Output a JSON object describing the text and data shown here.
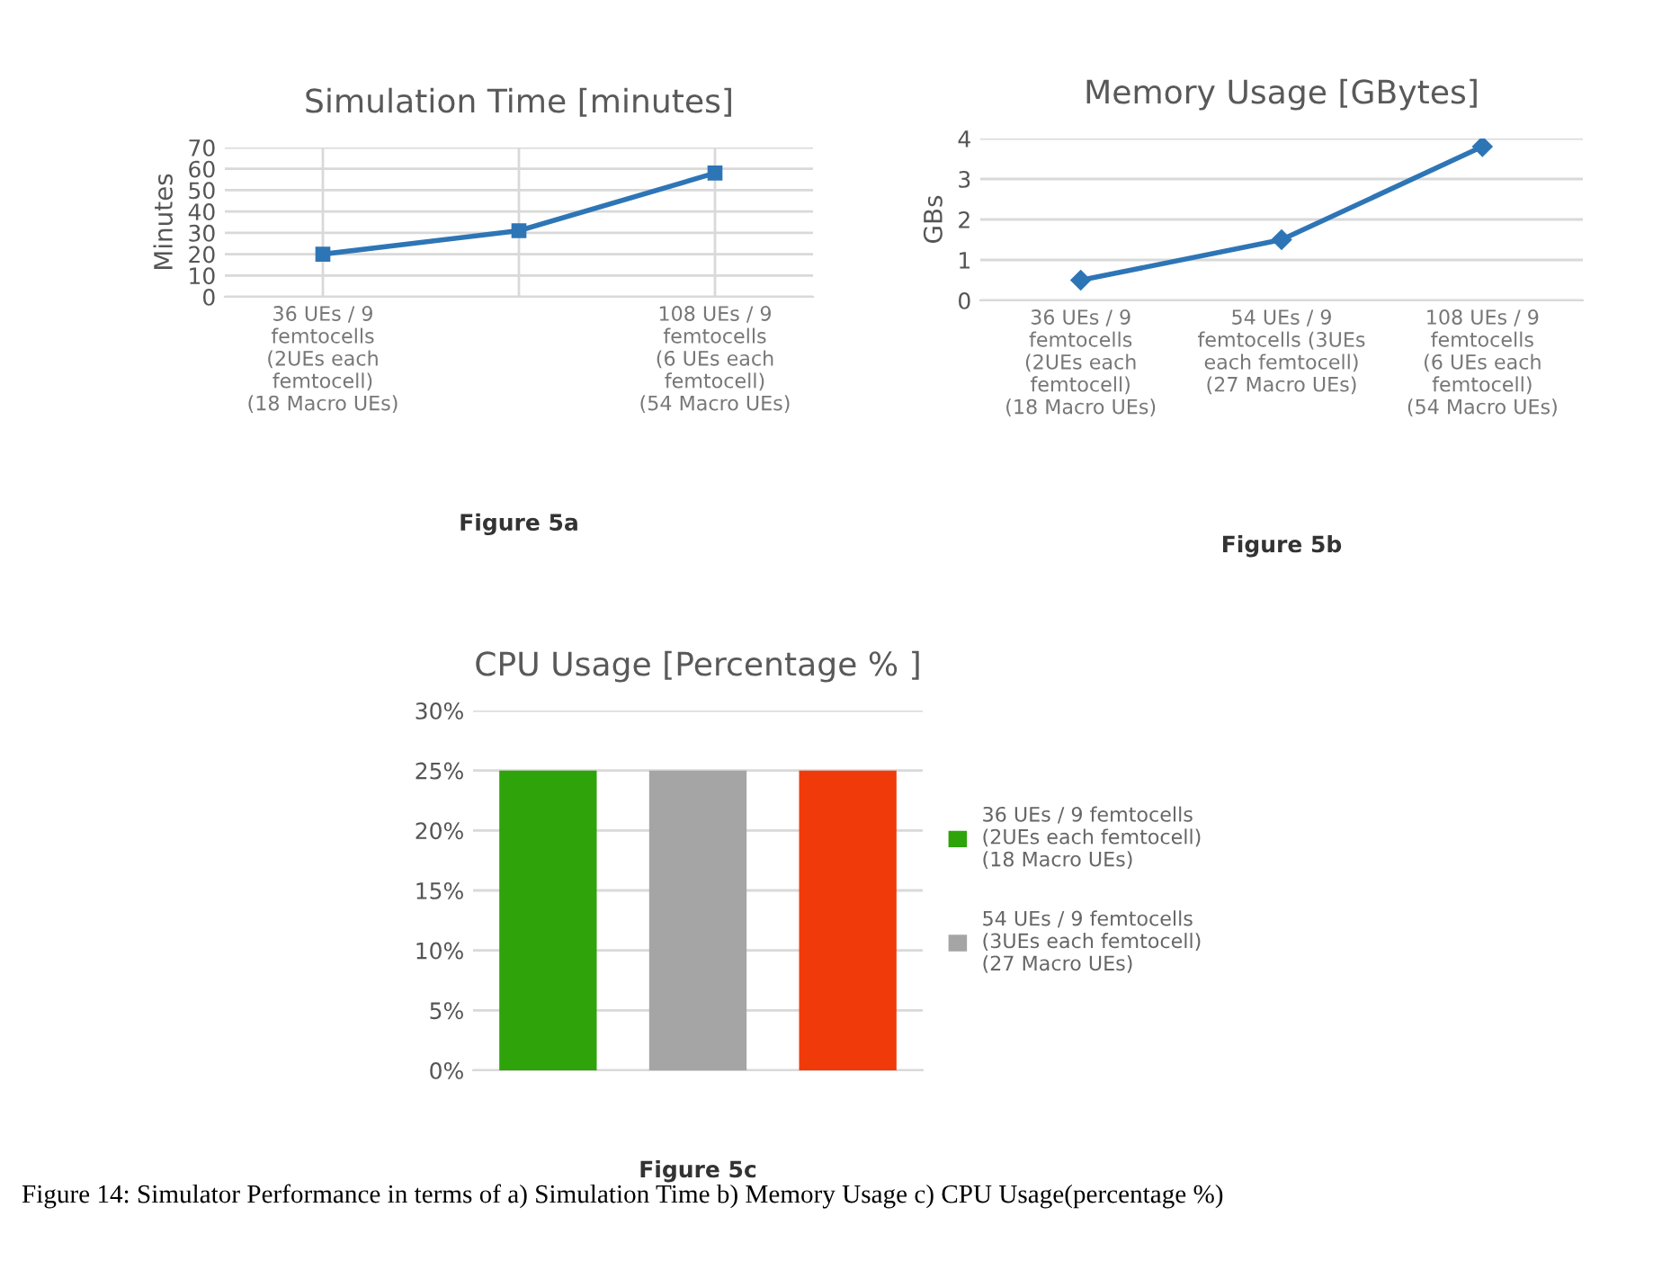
{
  "chart_data": [
    {
      "type": "line",
      "title": "Simulation Time [minutes]",
      "ylabel": "Minutes",
      "categories": [
        "36 UEs / 9\nfemtocells\n(2UEs each\nfemtocell)\n(18 Macro UEs)",
        null,
        "108 UEs / 9\nfemtocells\n(6 UEs each\nfemtocell)\n(54 Macro UEs)"
      ],
      "series": [
        {
          "color": "#2e75b6",
          "values": [
            20,
            31,
            58
          ]
        }
      ],
      "ylim": [
        0,
        70
      ],
      "yticks": [
        0,
        10,
        20,
        30,
        40,
        50,
        60,
        70
      ],
      "grid": true,
      "marker": "square",
      "line_style": "solid",
      "legend": false,
      "annotations": [
        "Figure 5a"
      ]
    },
    {
      "type": "line",
      "title": "Memory Usage [GBytes]",
      "ylabel": "GBs",
      "categories": [
        "36 UEs / 9\nfemtocells\n(2UEs each\nfemtocell)\n(18 Macro UEs)",
        "54 UEs / 9\nfemtocells (3UEs\neach femtocell)\n(27 Macro UEs)",
        "108 UEs / 9\nfemtocells\n(6 UEs each\nfemtocell)\n(54 Macro UEs)"
      ],
      "series": [
        {
          "color": "#2e75b6",
          "values": [
            0.5,
            1.5,
            3.8
          ]
        }
      ],
      "ylim": [
        0,
        4
      ],
      "yticks": [
        0,
        1,
        2,
        3,
        4
      ],
      "grid": "y",
      "marker": "diamond",
      "line_style": "solid",
      "legend": false,
      "annotations": [
        "Figure 5b"
      ]
    },
    {
      "type": "bar",
      "title": "CPU Usage [Percentage % ]",
      "categories": [
        null,
        null,
        null
      ],
      "series": [
        {
          "name": "36 UEs / 9 femtocells\n(2UEs each femtocell)\n(18 Macro UEs)",
          "color": "#2ea40a",
          "values": [
            25,
            null,
            null
          ]
        },
        {
          "name": "54 UEs / 9 femtocells\n(3UEs each femtocell)\n(27 Macro UEs)",
          "color": "#a5a5a5",
          "values": [
            null,
            25,
            null
          ]
        },
        {
          "color": "#f03a0a",
          "values": [
            null,
            null,
            25
          ]
        }
      ],
      "ylim": [
        0,
        30
      ],
      "yticks": [
        {
          "value": 0,
          "label": "0%"
        },
        {
          "value": 5,
          "label": "5%"
        },
        {
          "value": 10,
          "label": "10%"
        },
        {
          "value": 15,
          "label": "15%"
        },
        {
          "value": 20,
          "label": "20%"
        },
        {
          "value": 25,
          "label": "25%"
        },
        {
          "value": 30,
          "label": "30%"
        }
      ],
      "grid": "y",
      "legend": "right",
      "annotations": [
        "Figure 5c",
        "Figure 14: Simulator Performance in terms of a) Simulation Time b) Memory Usage c) CPU Usage(percentage %)"
      ]
    }
  ]
}
